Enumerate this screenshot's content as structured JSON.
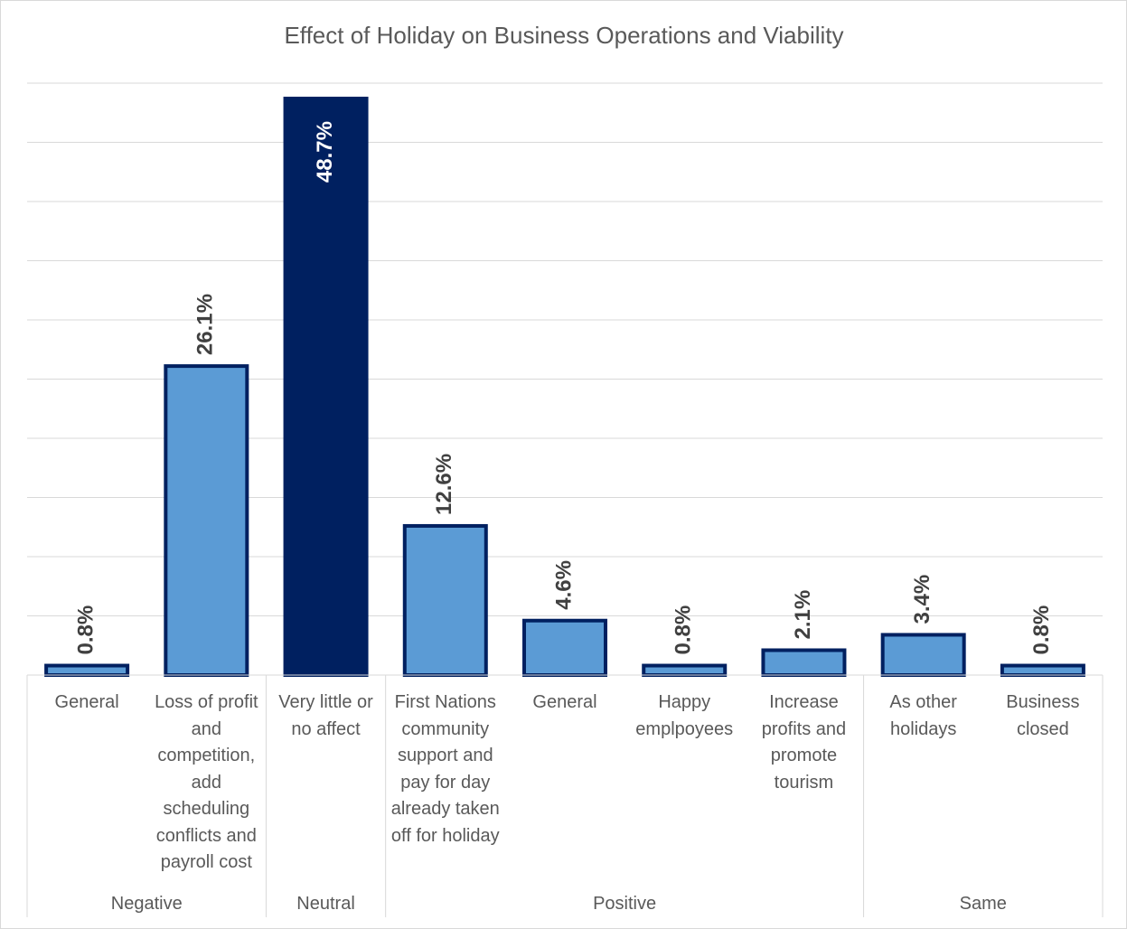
{
  "chart_data": {
    "type": "bar",
    "title": "Effect of Holiday on Business Operations and Viability",
    "groups": [
      {
        "name": "Negative",
        "categories": [
          "General",
          "Loss of profit and competition, add scheduling conflicts and payroll cost"
        ]
      },
      {
        "name": "Neutral",
        "categories": [
          "Very little or no affect"
        ]
      },
      {
        "name": "Positive",
        "categories": [
          "First Nations community support and pay for day already taken off for holiday",
          "General",
          "Happy emplpoyees",
          "Increase profits and promote tourism"
        ]
      },
      {
        "name": "Same",
        "categories": [
          "As other holidays",
          "Business closed"
        ]
      }
    ],
    "values": [
      0.8,
      26.1,
      48.7,
      12.6,
      4.6,
      0.8,
      2.1,
      3.4,
      0.8
    ],
    "value_labels": [
      "0.8%",
      "26.1%",
      "48.7%",
      "12.6%",
      "4.6%",
      "0.8%",
      "2.1%",
      "3.4%",
      "0.8%"
    ],
    "colors": [
      "#5b9bd5",
      "#5b9bd5",
      "#002060",
      "#5b9bd5",
      "#5b9bd5",
      "#5b9bd5",
      "#5b9bd5",
      "#5b9bd5",
      "#5b9bd5"
    ],
    "edge_color": "#002060",
    "ylim": [
      0,
      50
    ],
    "yticks": [
      0,
      5,
      10,
      15,
      20,
      25,
      30,
      35,
      40,
      45,
      50
    ],
    "grid": true
  }
}
